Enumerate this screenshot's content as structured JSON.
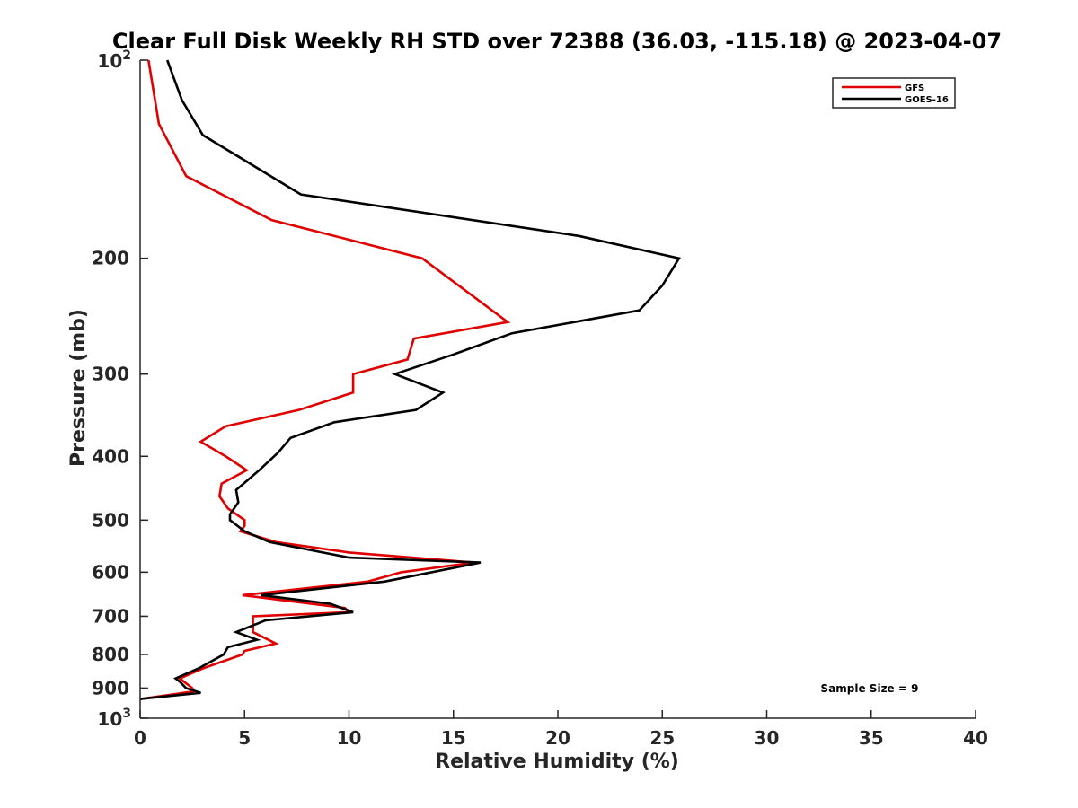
{
  "chart_data": {
    "type": "line",
    "title": "Clear Full Disk Weekly RH STD over 72388 (36.03, -115.18) @ 2023-04-07",
    "xlabel": "Relative Humidity (%)",
    "ylabel": "Pressure (mb)",
    "xlim": [
      0,
      40
    ],
    "ylim": [
      100,
      1000
    ],
    "y_scale": "log",
    "y_reversed": true,
    "grid": false,
    "legend_position": "top-right",
    "annotation": "Sample Size = 9",
    "x_ticks": [
      "0",
      "5",
      "10",
      "15",
      "20",
      "25",
      "30",
      "35",
      "40"
    ],
    "y_ticks": [
      {
        "value": 100,
        "base": "10",
        "exp": "2"
      },
      {
        "value": 200,
        "label": "200"
      },
      {
        "value": 300,
        "label": "300"
      },
      {
        "value": 400,
        "label": "400"
      },
      {
        "value": 500,
        "label": "500"
      },
      {
        "value": 600,
        "label": "600"
      },
      {
        "value": 700,
        "label": "700"
      },
      {
        "value": 800,
        "label": "800"
      },
      {
        "value": 900,
        "label": "900"
      },
      {
        "value": 1000,
        "base": "10",
        "exp": "3"
      }
    ],
    "series": [
      {
        "name": "GFS",
        "color": "#e00000",
        "points": [
          [
            0.4,
            100
          ],
          [
            0.9,
            125
          ],
          [
            2.2,
            150
          ],
          [
            6.3,
            175
          ],
          [
            13.5,
            200
          ],
          [
            17.6,
            250
          ],
          [
            13.1,
            265
          ],
          [
            12.8,
            285
          ],
          [
            10.2,
            300
          ],
          [
            10.2,
            320
          ],
          [
            7.6,
            340
          ],
          [
            4.1,
            360
          ],
          [
            2.9,
            380
          ],
          [
            4.1,
            400
          ],
          [
            5.1,
            420
          ],
          [
            3.9,
            440
          ],
          [
            3.8,
            460
          ],
          [
            4.2,
            480
          ],
          [
            5.0,
            500
          ],
          [
            5.0,
            510
          ],
          [
            4.8,
            520
          ],
          [
            6.5,
            540
          ],
          [
            10.0,
            560
          ],
          [
            16.0,
            580
          ],
          [
            12.5,
            600
          ],
          [
            10.9,
            620
          ],
          [
            4.9,
            650
          ],
          [
            9.8,
            680
          ],
          [
            10.0,
            690
          ],
          [
            5.4,
            700
          ],
          [
            5.4,
            740
          ],
          [
            6.5,
            770
          ],
          [
            5.0,
            790
          ],
          [
            4.9,
            800
          ],
          [
            3.0,
            840
          ],
          [
            1.9,
            870
          ],
          [
            2.1,
            880
          ],
          [
            2.5,
            900
          ],
          [
            2.6,
            910
          ],
          [
            0.0,
            935
          ]
        ]
      },
      {
        "name": "GOES-16",
        "color": "#000000",
        "points": [
          [
            1.3,
            100
          ],
          [
            2.0,
            115
          ],
          [
            3.0,
            130
          ],
          [
            7.7,
            160
          ],
          [
            21.0,
            185
          ],
          [
            25.8,
            200
          ],
          [
            25.0,
            220
          ],
          [
            23.9,
            240
          ],
          [
            17.8,
            260
          ],
          [
            15.0,
            280
          ],
          [
            12.2,
            300
          ],
          [
            14.5,
            320
          ],
          [
            13.2,
            340
          ],
          [
            9.3,
            355
          ],
          [
            7.2,
            375
          ],
          [
            6.6,
            395
          ],
          [
            5.7,
            420
          ],
          [
            4.6,
            450
          ],
          [
            4.7,
            470
          ],
          [
            4.3,
            490
          ],
          [
            4.3,
            500
          ],
          [
            5.0,
            520
          ],
          [
            6.2,
            540
          ],
          [
            10.0,
            570
          ],
          [
            16.3,
            580
          ],
          [
            11.7,
            620
          ],
          [
            5.8,
            650
          ],
          [
            9.1,
            670
          ],
          [
            10.2,
            690
          ],
          [
            6.0,
            710
          ],
          [
            4.6,
            740
          ],
          [
            5.6,
            760
          ],
          [
            4.2,
            780
          ],
          [
            4.0,
            800
          ],
          [
            2.8,
            840
          ],
          [
            1.7,
            870
          ],
          [
            1.9,
            880
          ],
          [
            2.2,
            900
          ],
          [
            2.9,
            915
          ],
          [
            0.0,
            935
          ]
        ]
      }
    ]
  }
}
